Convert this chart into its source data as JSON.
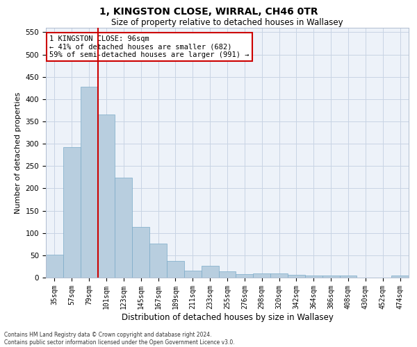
{
  "title": "1, KINGSTON CLOSE, WIRRAL, CH46 0TR",
  "subtitle": "Size of property relative to detached houses in Wallasey",
  "xlabel": "Distribution of detached houses by size in Wallasey",
  "ylabel": "Number of detached properties",
  "categories": [
    "35sqm",
    "57sqm",
    "79sqm",
    "101sqm",
    "123sqm",
    "145sqm",
    "167sqm",
    "189sqm",
    "211sqm",
    "233sqm",
    "255sqm",
    "276sqm",
    "298sqm",
    "320sqm",
    "342sqm",
    "364sqm",
    "386sqm",
    "408sqm",
    "430sqm",
    "452sqm",
    "474sqm"
  ],
  "values": [
    52,
    292,
    428,
    365,
    224,
    113,
    76,
    38,
    16,
    26,
    14,
    8,
    9,
    9,
    6,
    4,
    5,
    5,
    0,
    0,
    4
  ],
  "bar_color": "#b8cedf",
  "bar_edge_color": "#7aaac8",
  "grid_color": "#c8d4e4",
  "background_color": "#edf2f9",
  "red_line_color": "#cc0000",
  "annotation_text": "1 KINGSTON CLOSE: 96sqm\n← 41% of detached houses are smaller (682)\n59% of semi-detached houses are larger (991) →",
  "annotation_box_color": "#ffffff",
  "annotation_box_edge_color": "#cc0000",
  "ylim": [
    0,
    560
  ],
  "yticks": [
    0,
    50,
    100,
    150,
    200,
    250,
    300,
    350,
    400,
    450,
    500,
    550
  ],
  "footer": "Contains HM Land Registry data © Crown copyright and database right 2024.\nContains public sector information licensed under the Open Government Licence v3.0."
}
